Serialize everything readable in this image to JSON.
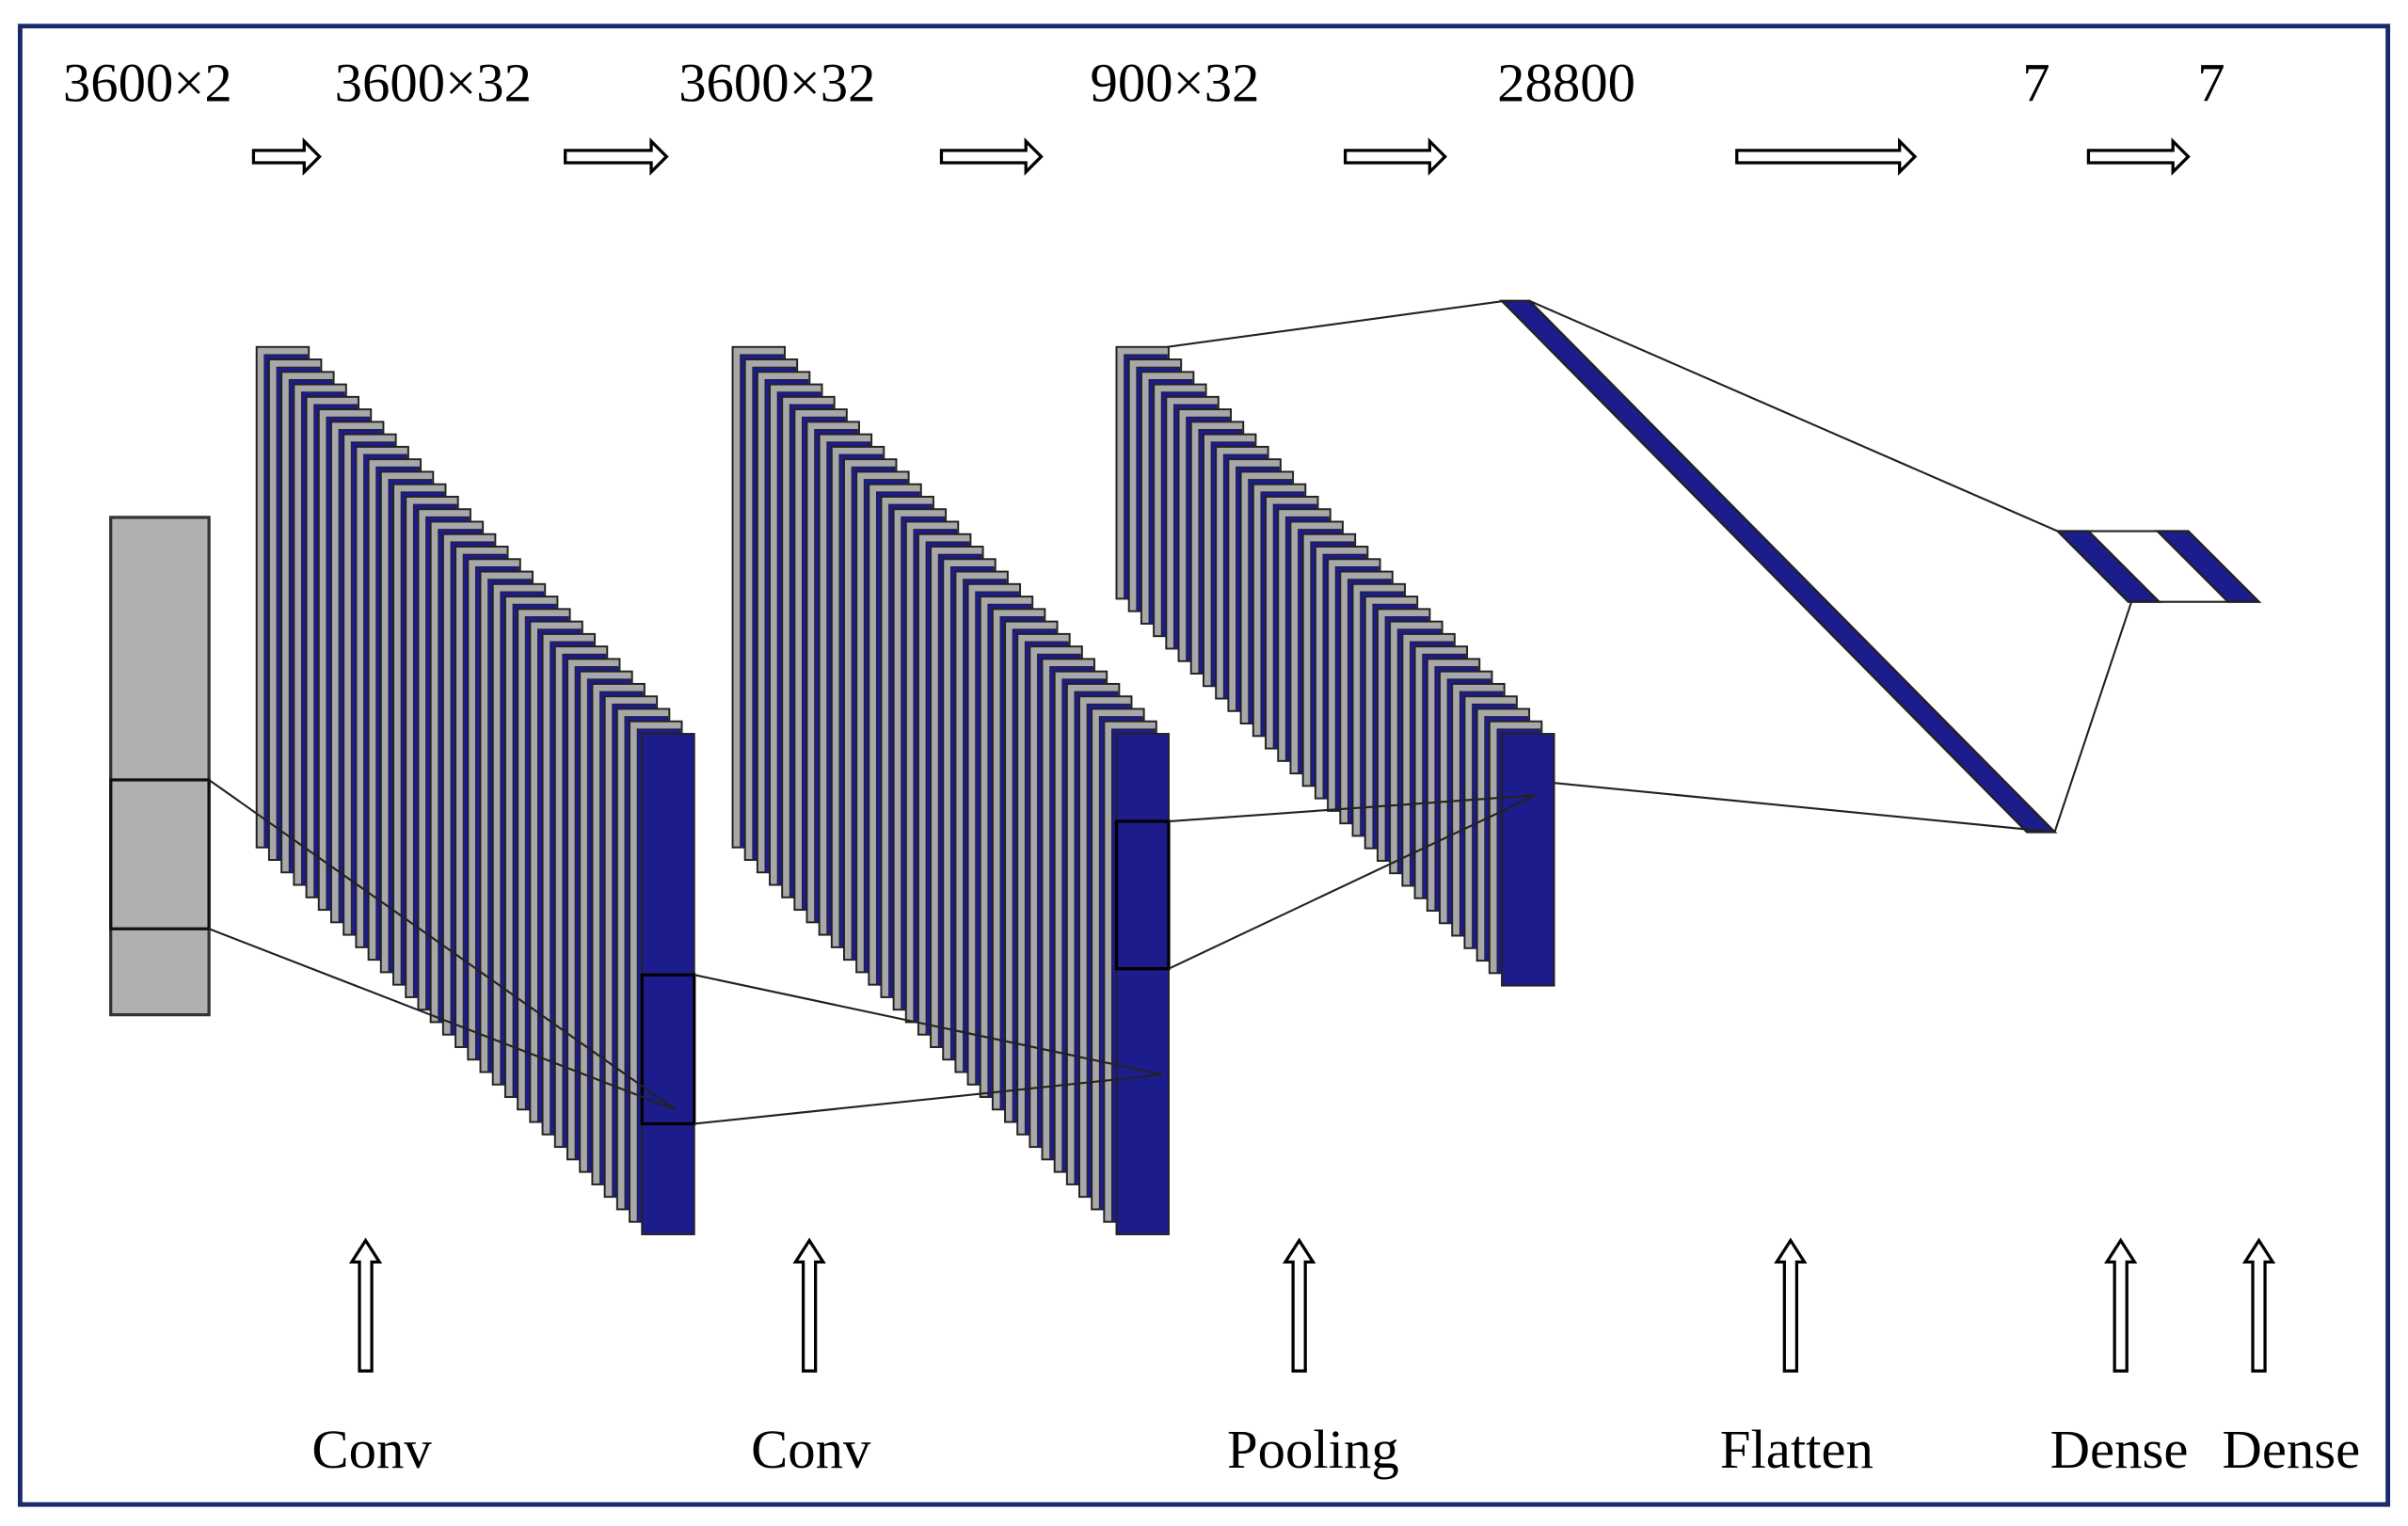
{
  "shape_labels": [
    "3600×2",
    "3600×32",
    "3600×32",
    "900×32",
    "28800",
    "7",
    "7"
  ],
  "layer_labels": [
    "Conv",
    "Conv",
    "Pooling",
    "Flatten",
    "Dense",
    "Dense"
  ]
}
